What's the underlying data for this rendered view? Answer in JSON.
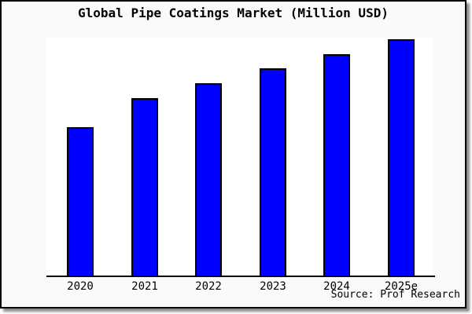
{
  "title": "Global Pipe Coatings Market (Million USD)",
  "source_credit": "Source: Prof Research",
  "chart_data": {
    "type": "bar",
    "title": "Global Pipe Coatings Market (Million USD)",
    "categories": [
      "2020",
      "2021",
      "2022",
      "2023",
      "2024",
      "2025e"
    ],
    "values": [
      189,
      226,
      245,
      264,
      282,
      301
    ],
    "values_note": "chart displays no numeric y-axis; values are measured bar heights in pixels",
    "values_relative_pct_of_2025e": [
      62.7,
      75.0,
      81.3,
      87.6,
      93.5,
      100
    ],
    "xlabel": "",
    "ylabel": "",
    "grid": false,
    "legend": false,
    "y_axis_shown": false,
    "annotations": [
      "Source: Prof Research"
    ]
  },
  "colors": {
    "bar_fill": "#0000ff",
    "bar_border": "#000000",
    "canvas_background": "#fafafa",
    "plot_background": "#ffffff",
    "frame_border": "#000000",
    "shadow": "#8a8a8a",
    "text": "#000000"
  }
}
